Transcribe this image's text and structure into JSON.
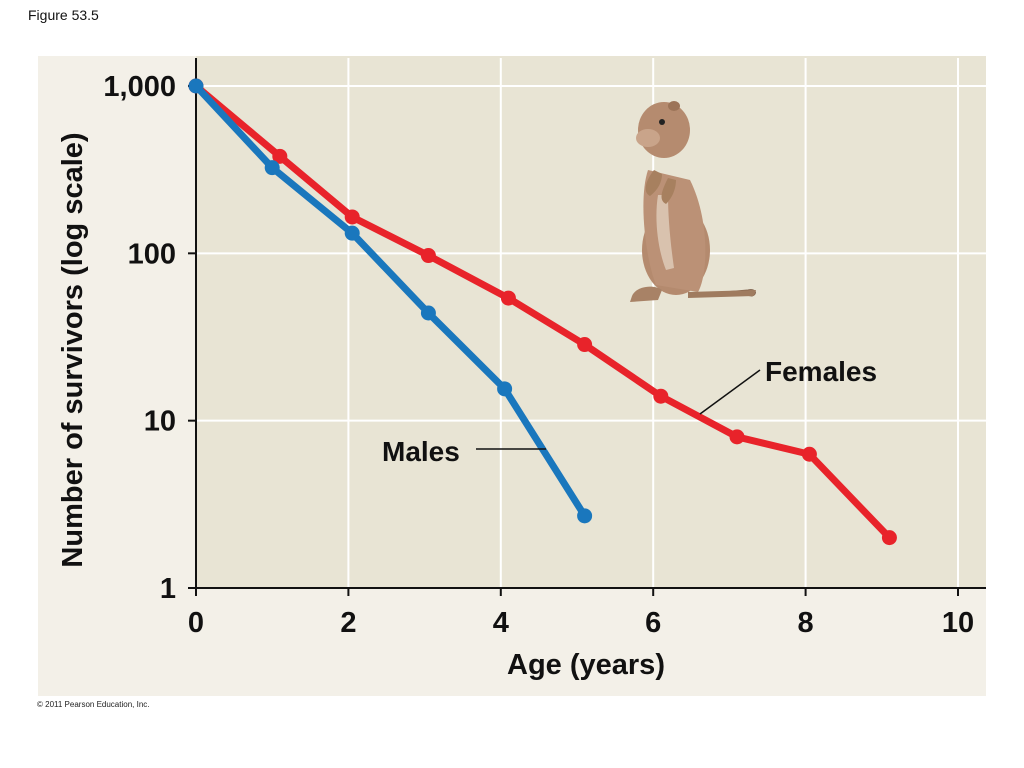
{
  "figure_label": "Figure 53.5",
  "copyright": "© 2011 Pearson Education, Inc.",
  "illustration": "ground-squirrel-icon",
  "colors": {
    "females": "#e8232a",
    "males": "#1a77bd",
    "plot_bg": "#e8e4d4",
    "panel_bg": "#f3f0e8",
    "grid": "#ffffff"
  },
  "chart_data": {
    "type": "line",
    "xlabel": "Age (years)",
    "ylabel": "Number of survivors (log scale)",
    "xlim": [
      0,
      10
    ],
    "ylim": [
      1,
      1000
    ],
    "yscale": "log",
    "grid": true,
    "x_ticks": [
      "0",
      "2",
      "4",
      "6",
      "8",
      "10"
    ],
    "y_ticks": [
      "1",
      "10",
      "100",
      "1,000"
    ],
    "series": [
      {
        "name": "Females",
        "x": [
          0,
          1.1,
          2.05,
          3.05,
          4.1,
          5.1,
          6.1,
          7.1,
          8.05,
          9.1
        ],
        "y": [
          1000,
          380,
          165,
          97,
          54,
          28.5,
          14,
          8,
          6.3,
          2
        ]
      },
      {
        "name": "Males",
        "x": [
          0,
          1,
          2.05,
          3.05,
          4.05,
          5.1
        ],
        "y": [
          1000,
          325,
          132,
          44,
          15.5,
          2.7
        ]
      }
    ]
  }
}
